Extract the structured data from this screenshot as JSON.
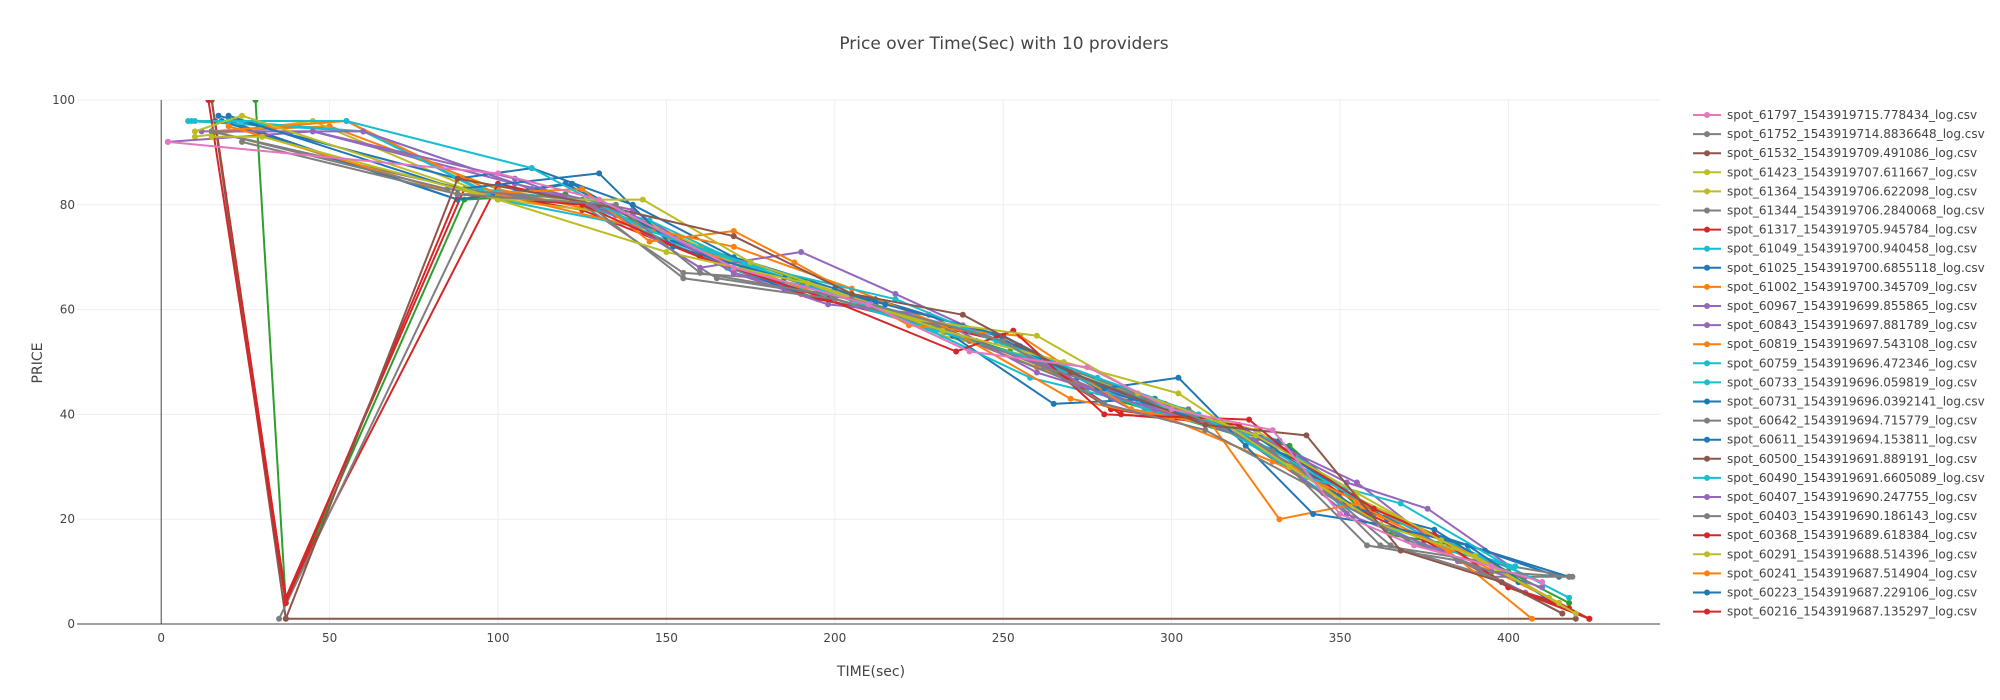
{
  "chart_data": {
    "type": "line",
    "title": "Price over Time(Sec) with 10 providers",
    "xlabel": "TIME(sec)",
    "ylabel": "PRICE",
    "xlim": [
      -25,
      445
    ],
    "ylim": [
      0,
      100
    ],
    "x_ticks": [
      0,
      50,
      100,
      150,
      200,
      250,
      300,
      350,
      400
    ],
    "y_ticks": [
      0,
      20,
      40,
      60,
      80,
      100
    ],
    "grid": true,
    "legend_position": "right",
    "series": [
      {
        "name": "spot_61797_1543919715.778434_log.csv",
        "color": "#e377c2",
        "x": [
          2,
          100,
          130,
          170,
          210,
          240,
          275,
          300,
          330,
          350,
          372,
          395,
          410
        ],
        "y": [
          92,
          86,
          81,
          68,
          61,
          52,
          49,
          41,
          37,
          21,
          15,
          11,
          8
        ]
      },
      {
        "name": "spot_61752_1543919714.8836648_log.csv",
        "color": "#7f7f7f",
        "x": [
          24,
          88,
          135,
          160,
          205,
          250,
          280,
          310,
          345,
          370,
          395,
          418
        ],
        "y": [
          92,
          82,
          80,
          67,
          62,
          54,
          42,
          37,
          25,
          16,
          10,
          9
        ]
      },
      {
        "name": "spot_61532_1543919709.491086_log.csv",
        "color": "#8c564b",
        "x": [
          37,
          88,
          130,
          170,
          205,
          238,
          270,
          310,
          340,
          368,
          398,
          416
        ],
        "y": [
          1,
          85,
          80,
          74,
          63,
          59,
          48,
          38,
          36,
          14,
          8,
          2
        ]
      },
      {
        "name": "spot_61423_1543919707.611667_log.csv",
        "color": "#bcbd22",
        "x": [
          10,
          24,
          100,
          143,
          175,
          225,
          260,
          290,
          325,
          355,
          380,
          415
        ],
        "y": [
          94,
          97,
          81,
          81,
          69,
          58,
          55,
          44,
          36,
          25,
          16,
          4
        ]
      },
      {
        "name": "spot_61364_1543919706.622098_log.csv",
        "color": "#bcbd22",
        "x": [
          15,
          30,
          100,
          150,
          192,
          232,
          268,
          302,
          335,
          362,
          390,
          420
        ],
        "y": [
          93,
          93,
          81,
          71,
          65,
          56,
          50,
          44,
          30,
          19,
          13,
          2
        ]
      },
      {
        "name": "spot_61344_1543919706.2840068_log.csv",
        "color": "#7f7f7f",
        "x": [
          15,
          85,
          125,
          155,
          200,
          230,
          262,
          298,
          330,
          358,
          386,
          416
        ],
        "y": [
          94,
          83,
          81,
          66,
          62,
          57,
          49,
          42,
          33,
          15,
          12,
          2
        ]
      },
      {
        "name": "spot_61317_1543919705.945784_log.csv",
        "color": "#d62728",
        "x": [
          14,
          37,
          88,
          125,
          160,
          198,
          236,
          253,
          280,
          323,
          336,
          360,
          378,
          400,
          415,
          424
        ],
        "y": [
          100,
          4,
          82,
          80,
          70,
          62,
          52,
          56,
          40,
          39,
          32,
          22,
          17,
          7,
          4,
          1
        ]
      },
      {
        "name": "spot_61049_1543919700.940458_log.csv",
        "color": "#17becf",
        "x": [
          9,
          55,
          110,
          145,
          178,
          218,
          248,
          278,
          308,
          340,
          368,
          400,
          418
        ],
        "y": [
          96,
          96,
          87,
          75,
          68,
          62,
          54,
          47,
          40,
          28,
          23,
          11,
          5
        ]
      },
      {
        "name": "spot_61025_1543919700.6855118_log.csv",
        "color": "#1f77b4",
        "x": [
          20,
          88,
          130,
          152,
          185,
          215,
          250,
          280,
          302,
          322,
          342,
          362,
          388,
          411
        ],
        "y": [
          97,
          83,
          86,
          72,
          66,
          61,
          55,
          45,
          47,
          34,
          21,
          19,
          15,
          5
        ]
      },
      {
        "name": "spot_61002_1543919700.345709_log.csv",
        "color": "#ff7f0e",
        "x": [
          20,
          88,
          125,
          145,
          170,
          188,
          222,
          255,
          288,
          312,
          332,
          355,
          382,
          407
        ],
        "y": [
          95,
          82,
          83,
          73,
          75,
          69,
          57,
          55,
          41,
          38,
          20,
          23,
          14,
          1
        ]
      },
      {
        "name": "spot_60967_1543919699.855865_log.csv",
        "color": "#9467bd",
        "x": [
          2,
          45,
          105,
          135,
          160,
          190,
          218,
          252,
          288,
          322,
          355,
          385,
          410
        ],
        "y": [
          92,
          94,
          85,
          78,
          68,
          71,
          63,
          53,
          41,
          37,
          27,
          12,
          7
        ]
      },
      {
        "name": "spot_60843_1543919697.881789_log.csv",
        "color": "#9467bd",
        "x": [
          15,
          60,
          110,
          140,
          170,
          198,
          228,
          260,
          295,
          325,
          352,
          380,
          405
        ],
        "y": [
          94,
          94,
          83,
          78,
          67,
          61,
          59,
          48,
          41,
          35,
          21,
          14,
          6
        ]
      },
      {
        "name": "spot_60819_1543919697.543108_log.csv",
        "color": "#ff7f0e",
        "x": [
          15,
          55,
          100,
          140,
          170,
          205,
          232,
          270,
          300,
          330,
          360,
          390,
          415
        ],
        "y": [
          94,
          96,
          82,
          76,
          72,
          64,
          57,
          43,
          39,
          31,
          22,
          13,
          4
        ]
      },
      {
        "name": "spot_60759_1543919696.472346_log.csv",
        "color": "#17becf",
        "x": [
          10,
          55,
          100,
          140,
          168,
          200,
          230,
          262,
          292,
          322,
          352,
          380,
          402
        ],
        "y": [
          96,
          96,
          81,
          76,
          68,
          62,
          56,
          50,
          41,
          36,
          25,
          15,
          11
        ]
      },
      {
        "name": "spot_60733_1543919696.059819_log.csv",
        "color": "#17becf",
        "x": [
          20,
          60,
          95,
          122,
          158,
          195,
          225,
          258,
          290,
          320,
          350,
          375,
          402
        ],
        "y": [
          96,
          94,
          83,
          81,
          72,
          64,
          57,
          47,
          42,
          36,
          23,
          15,
          11
        ]
      },
      {
        "name": "spot_60731_1543919696.0392141_log.csv",
        "color": "#1f77b4",
        "x": [
          18,
          88,
          122,
          152,
          185,
          212,
          248,
          278,
          308,
          335,
          364,
          393,
          418
        ],
        "y": [
          96,
          81,
          84,
          73,
          64,
          62,
          55,
          45,
          39,
          32,
          20,
          14,
          9
        ]
      },
      {
        "name": "spot_60642_1543919694.715779_log.csv",
        "color": "#7f7f7f",
        "x": [
          35,
          95,
          130,
          165,
          205,
          240,
          275,
          305,
          340,
          362,
          392,
          419
        ],
        "y": [
          1,
          82,
          80,
          66,
          62,
          54,
          45,
          41,
          29,
          15,
          12,
          9
        ]
      },
      {
        "name": "spot_60611_1543919694.153811_log.csv",
        "color": "#1f77b4",
        "x": [
          17,
          88,
          110,
          140,
          170,
          200,
          235,
          265,
          295,
          325,
          355,
          378,
          403
        ],
        "y": [
          97,
          85,
          87,
          80,
          70,
          64,
          55,
          42,
          43,
          36,
          22,
          18,
          8
        ]
      },
      {
        "name": "spot_60500_1543919691.889191_log.csv",
        "color": "#8c564b",
        "x": [
          15,
          37,
          420
        ],
        "y": [
          100,
          1,
          1
        ]
      },
      {
        "name": "spot_60490_1543919691.6605089_log.csv",
        "color": "#17becf",
        "x": [
          8,
          60,
          110,
          145,
          175,
          205,
          240,
          270,
          300,
          330,
          360,
          388,
          410
        ],
        "y": [
          96,
          94,
          83,
          77,
          68,
          62,
          56,
          48,
          41,
          35,
          22,
          14,
          8
        ]
      },
      {
        "name": "spot_60407_1543919690.247755_log.csv",
        "color": "#9467bd",
        "x": [
          12,
          45,
          105,
          140,
          170,
          200,
          230,
          260,
          292,
          322,
          352,
          376,
          405
        ],
        "y": [
          94,
          94,
          84,
          79,
          67,
          62,
          56,
          50,
          42,
          37,
          27,
          22,
          9
        ]
      },
      {
        "name": "spot_60403_1543919690.186143_log.csv",
        "color": "#7f7f7f",
        "x": [
          15,
          90,
          125,
          155,
          180,
          210,
          238,
          268,
          298,
          328,
          365,
          395,
          418
        ],
        "y": [
          94,
          83,
          80,
          67,
          66,
          62,
          57,
          49,
          42,
          35,
          15,
          9,
          9
        ]
      },
      {
        "name": "spot_60368_1543919689.618384_log.csv",
        "color": "#d62728",
        "x": [
          15,
          37,
          100,
          135,
          165,
          195,
          225,
          255,
          285,
          320,
          350,
          380,
          400,
          418
        ],
        "y": [
          100,
          5,
          84,
          79,
          69,
          62,
          58,
          53,
          40,
          38,
          25,
          16,
          7,
          3
        ]
      },
      {
        "name": "spot_60291_1543919688.514396_log.csv",
        "color": "#bcbd22",
        "x": [
          10,
          45,
          100,
          140,
          170,
          200,
          232,
          265,
          295,
          325,
          355,
          385,
          412
        ],
        "y": [
          93,
          96,
          81,
          78,
          69,
          63,
          55,
          50,
          42,
          37,
          24,
          15,
          5
        ]
      },
      {
        "name": "spot_60241_1543919687.514904_log.csv",
        "color": "#ff7f0e",
        "x": [
          15,
          50,
          100,
          135,
          165,
          195,
          228,
          260,
          290,
          320,
          350,
          380,
          412
        ],
        "y": [
          94,
          95,
          83,
          78,
          70,
          63,
          57,
          49,
          42,
          37,
          24,
          15,
          5
        ]
      },
      {
        "name": "spot_60223_1543919687.229106_log.csv",
        "color": "#1f77b4",
        "x": [
          20,
          88,
          120,
          148,
          180,
          212,
          242,
          272,
          302,
          332,
          360,
          388,
          415
        ],
        "y": [
          96,
          81,
          84,
          75,
          66,
          61,
          54,
          47,
          40,
          35,
          21,
          15,
          9
        ]
      },
      {
        "name": "spot_60216_1543919687.135297_log.csv",
        "color": "#d62728",
        "x": [
          16,
          37,
          90,
          125,
          160,
          190,
          222,
          250,
          282,
          315,
          345,
          375,
          400,
          424
        ],
        "y": [
          96,
          5,
          83,
          79,
          70,
          63,
          58,
          54,
          41,
          38,
          25,
          16,
          7,
          1
        ]
      },
      {
        "name": "",
        "color": "#2ca02c",
        "x": [
          28,
          37,
          90,
          120,
          160,
          188,
          222,
          252,
          282,
          320,
          335,
          365,
          385,
          400,
          418
        ],
        "y": [
          100,
          4,
          81,
          82,
          72,
          66,
          58,
          52,
          43,
          36,
          34,
          17,
          15,
          10,
          4
        ]
      }
    ]
  }
}
